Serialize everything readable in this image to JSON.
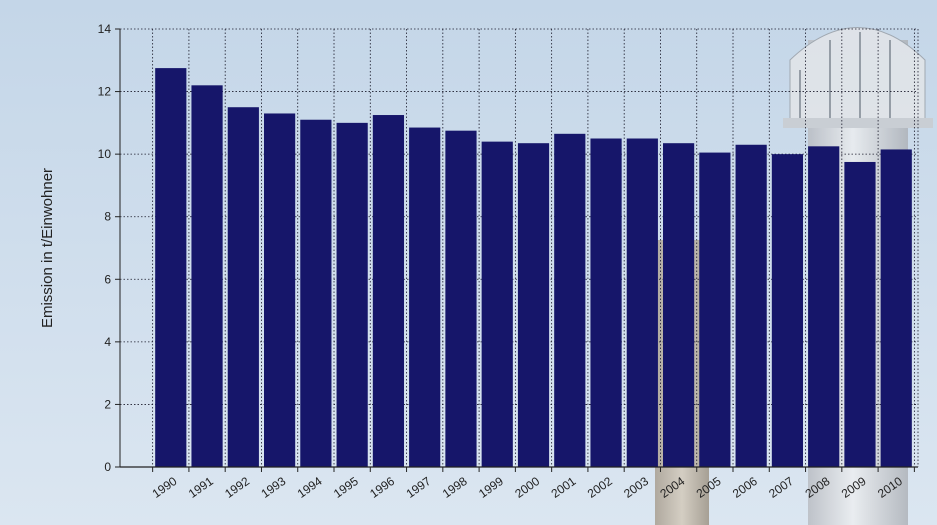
{
  "chart_data": {
    "type": "bar",
    "title": "",
    "xlabel": "",
    "ylabel": "Emission in t/Einwohner",
    "ylim": [
      0,
      14
    ],
    "yticks": [
      0,
      2,
      4,
      6,
      8,
      10,
      12,
      14
    ],
    "grid": true,
    "categories": [
      "1990",
      "1991",
      "1992",
      "1993",
      "1994",
      "1995",
      "1996",
      "1997",
      "1998",
      "1999",
      "2000",
      "2001",
      "2002",
      "2003",
      "2004",
      "2005",
      "2006",
      "2007",
      "2008",
      "2009",
      "2010"
    ],
    "values": [
      12.75,
      12.2,
      11.5,
      11.3,
      11.1,
      11.0,
      11.25,
      10.85,
      10.75,
      10.4,
      10.35,
      10.65,
      10.5,
      10.5,
      10.35,
      10.05,
      10.3,
      10.0,
      10.25,
      9.75,
      10.15
    ]
  },
  "colors": {
    "bar": "#16166A",
    "sky_top": "#c4d6e8",
    "sky_bottom": "#dbe6f1",
    "tower": "#d8d9dc"
  }
}
